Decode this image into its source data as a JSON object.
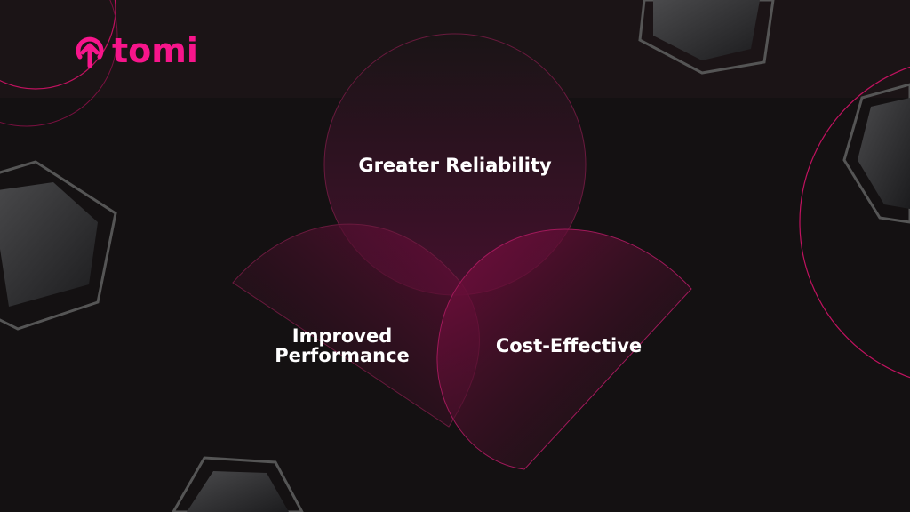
{
  "logo": {
    "text": "tomi",
    "color": "#f7158b"
  },
  "diagram": {
    "circles": [
      {
        "label": "Greater Reliability"
      },
      {
        "label": "Improved Performance"
      },
      {
        "label": "Cost-Effective"
      }
    ]
  },
  "colors": {
    "background": "#141112",
    "accent": "#f7158b"
  }
}
